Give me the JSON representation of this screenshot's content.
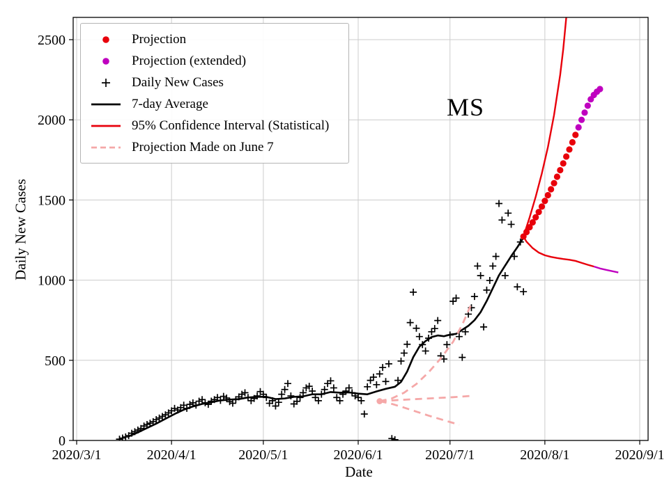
{
  "figure": {
    "annotation": "MS",
    "xlabel": "Date",
    "ylabel": "Daily New Cases"
  },
  "legend": {
    "position": "upper left",
    "items": [
      {
        "label": "Projection",
        "marker": "dot",
        "color": "#e8000b"
      },
      {
        "label": "Projection (extended)",
        "marker": "dot",
        "color": "#bf00bf"
      },
      {
        "label": "Daily New Cases",
        "marker": "plus",
        "color": "#000000"
      },
      {
        "label": "7-day Average",
        "marker": "line",
        "color": "#000000"
      },
      {
        "label": "95% Confidence Interval (Statistical)",
        "marker": "line",
        "color": "#e8000b"
      },
      {
        "label": "Projection Made on June 7",
        "marker": "dashed",
        "color": "#f5a8a8"
      }
    ]
  },
  "chart_data": {
    "type": "line",
    "title": "MS",
    "xlabel": "Date",
    "ylabel": "Daily New Cases",
    "ylim": [
      0,
      2640
    ],
    "yticks": [
      0,
      500,
      1000,
      1500,
      2000,
      2500
    ],
    "xtick_labels": [
      "2020/3/1",
      "2020/4/1",
      "2020/5/1",
      "2020/6/1",
      "2020/7/1",
      "2020/8/1",
      "2020/9/1"
    ],
    "grid": true,
    "series": [
      {
        "name": "Daily New Cases",
        "type": "scatter",
        "marker": "plus",
        "color": "#000000",
        "points": [
          [
            "3/15",
            8
          ],
          [
            "3/16",
            15
          ],
          [
            "3/17",
            22
          ],
          [
            "3/18",
            30
          ],
          [
            "3/19",
            45
          ],
          [
            "3/20",
            55
          ],
          [
            "3/21",
            65
          ],
          [
            "3/22",
            75
          ],
          [
            "3/23",
            90
          ],
          [
            "3/24",
            100
          ],
          [
            "3/25",
            108
          ],
          [
            "3/26",
            118
          ],
          [
            "3/27",
            130
          ],
          [
            "3/28",
            140
          ],
          [
            "3/29",
            150
          ],
          [
            "3/30",
            160
          ],
          [
            "3/31",
            172
          ],
          [
            "4/1",
            185
          ],
          [
            "4/2",
            200
          ],
          [
            "4/3",
            190
          ],
          [
            "4/4",
            205
          ],
          [
            "4/5",
            220
          ],
          [
            "4/6",
            200
          ],
          [
            "4/7",
            225
          ],
          [
            "4/8",
            235
          ],
          [
            "4/9",
            220
          ],
          [
            "4/10",
            245
          ],
          [
            "4/11",
            255
          ],
          [
            "4/12",
            235
          ],
          [
            "4/13",
            225
          ],
          [
            "4/14",
            245
          ],
          [
            "4/15",
            255
          ],
          [
            "4/16",
            268
          ],
          [
            "4/17",
            250
          ],
          [
            "4/18",
            275
          ],
          [
            "4/19",
            265
          ],
          [
            "4/20",
            242
          ],
          [
            "4/21",
            232
          ],
          [
            "4/22",
            255
          ],
          [
            "4/23",
            272
          ],
          [
            "4/24",
            288
          ],
          [
            "4/25",
            298
          ],
          [
            "4/26",
            268
          ],
          [
            "4/27",
            248
          ],
          [
            "4/28",
            262
          ],
          [
            "4/29",
            278
          ],
          [
            "4/30",
            305
          ],
          [
            "5/1",
            288
          ],
          [
            "5/2",
            268
          ],
          [
            "5/3",
            232
          ],
          [
            "5/4",
            248
          ],
          [
            "5/5",
            215
          ],
          [
            "5/6",
            238
          ],
          [
            "5/7",
            288
          ],
          [
            "5/8",
            318
          ],
          [
            "5/9",
            355
          ],
          [
            "5/10",
            278
          ],
          [
            "5/11",
            228
          ],
          [
            "5/12",
            244
          ],
          [
            "5/13",
            268
          ],
          [
            "5/14",
            298
          ],
          [
            "5/15",
            328
          ],
          [
            "5/16",
            338
          ],
          [
            "5/17",
            308
          ],
          [
            "5/18",
            268
          ],
          [
            "5/19",
            248
          ],
          [
            "5/20",
            288
          ],
          [
            "5/21",
            318
          ],
          [
            "5/22",
            355
          ],
          [
            "5/23",
            372
          ],
          [
            "5/24",
            328
          ],
          [
            "5/25",
            268
          ],
          [
            "5/26",
            248
          ],
          [
            "5/27",
            288
          ],
          [
            "5/28",
            308
          ],
          [
            "5/29",
            328
          ],
          [
            "5/30",
            298
          ],
          [
            "5/31",
            278
          ],
          [
            "6/1",
            268
          ],
          [
            "6/2",
            248
          ],
          [
            "6/3",
            165
          ],
          [
            "6/4",
            335
          ],
          [
            "6/5",
            375
          ],
          [
            "6/6",
            395
          ],
          [
            "6/7",
            348
          ],
          [
            "6/8",
            415
          ],
          [
            "6/9",
            455
          ],
          [
            "6/10",
            368
          ],
          [
            "6/11",
            478
          ],
          [
            "6/12",
            12
          ],
          [
            "6/13",
            5
          ],
          [
            "6/14",
            375
          ],
          [
            "6/15",
            495
          ],
          [
            "6/16",
            545
          ],
          [
            "6/17",
            600
          ],
          [
            "6/18",
            735
          ],
          [
            "6/19",
            925
          ],
          [
            "6/20",
            700
          ],
          [
            "6/21",
            648
          ],
          [
            "6/22",
            598
          ],
          [
            "6/23",
            558
          ],
          [
            "6/24",
            638
          ],
          [
            "6/25",
            678
          ],
          [
            "6/26",
            698
          ],
          [
            "6/27",
            748
          ],
          [
            "6/28",
            528
          ],
          [
            "6/29",
            508
          ],
          [
            "6/30",
            598
          ],
          [
            "7/1",
            658
          ],
          [
            "7/2",
            868
          ],
          [
            "7/3",
            888
          ],
          [
            "7/4",
            648
          ],
          [
            "7/5",
            518
          ],
          [
            "7/6",
            678
          ],
          [
            "7/7",
            788
          ],
          [
            "7/8",
            828
          ],
          [
            "7/9",
            898
          ],
          [
            "7/10",
            1088
          ],
          [
            "7/11",
            1028
          ],
          [
            "7/12",
            708
          ],
          [
            "7/13",
            938
          ],
          [
            "7/14",
            998
          ],
          [
            "7/15",
            1088
          ],
          [
            "7/16",
            1148
          ],
          [
            "7/17",
            1478
          ],
          [
            "7/18",
            1375
          ],
          [
            "7/19",
            1028
          ],
          [
            "7/20",
            1418
          ],
          [
            "7/21",
            1348
          ],
          [
            "7/22",
            1148
          ],
          [
            "7/23",
            958
          ],
          [
            "7/24",
            1238
          ],
          [
            "7/25",
            928
          ]
        ]
      },
      {
        "name": "7-day Average",
        "type": "line",
        "color": "#000000",
        "width": 2.6,
        "points": [
          [
            "3/18",
            25
          ],
          [
            "3/21",
            50
          ],
          [
            "3/24",
            78
          ],
          [
            "3/27",
            105
          ],
          [
            "3/30",
            135
          ],
          [
            "4/2",
            165
          ],
          [
            "4/5",
            192
          ],
          [
            "4/8",
            212
          ],
          [
            "4/11",
            228
          ],
          [
            "4/14",
            238
          ],
          [
            "4/17",
            250
          ],
          [
            "4/20",
            255
          ],
          [
            "4/23",
            258
          ],
          [
            "4/26",
            268
          ],
          [
            "4/29",
            272
          ],
          [
            "5/2",
            272
          ],
          [
            "5/5",
            258
          ],
          [
            "5/8",
            262
          ],
          [
            "5/11",
            272
          ],
          [
            "5/14",
            275
          ],
          [
            "5/17",
            288
          ],
          [
            "5/20",
            288
          ],
          [
            "5/23",
            302
          ],
          [
            "5/26",
            298
          ],
          [
            "5/29",
            300
          ],
          [
            "6/1",
            292
          ],
          [
            "6/4",
            288
          ],
          [
            "6/7",
            306
          ],
          [
            "6/10",
            322
          ],
          [
            "6/13",
            335
          ],
          [
            "6/15",
            365
          ],
          [
            "6/17",
            430
          ],
          [
            "6/19",
            520
          ],
          [
            "6/21",
            585
          ],
          [
            "6/23",
            620
          ],
          [
            "6/25",
            645
          ],
          [
            "6/27",
            655
          ],
          [
            "6/29",
            650
          ],
          [
            "7/1",
            660
          ],
          [
            "7/3",
            665
          ],
          [
            "7/5",
            690
          ],
          [
            "7/7",
            715
          ],
          [
            "7/9",
            750
          ],
          [
            "7/11",
            800
          ],
          [
            "7/13",
            870
          ],
          [
            "7/15",
            950
          ],
          [
            "7/17",
            1030
          ],
          [
            "7/19",
            1090
          ],
          [
            "7/21",
            1150
          ],
          [
            "7/23",
            1205
          ],
          [
            "7/25",
            1265
          ]
        ]
      },
      {
        "name": "Projection",
        "type": "scatter",
        "marker": "dot",
        "color": "#e8000b",
        "points": [
          [
            "7/25",
            1272
          ],
          [
            "7/26",
            1300
          ],
          [
            "7/27",
            1330
          ],
          [
            "7/28",
            1360
          ],
          [
            "7/29",
            1392
          ],
          [
            "7/30",
            1425
          ],
          [
            "7/31",
            1459
          ],
          [
            "8/1",
            1494
          ],
          [
            "8/2",
            1530
          ],
          [
            "8/3",
            1567
          ],
          [
            "8/4",
            1605
          ],
          [
            "8/5",
            1645
          ],
          [
            "8/6",
            1686
          ],
          [
            "8/7",
            1728
          ],
          [
            "8/8",
            1771
          ],
          [
            "8/9",
            1815
          ],
          [
            "8/10",
            1860
          ],
          [
            "8/11",
            1906
          ]
        ]
      },
      {
        "name": "Projection (extended)",
        "type": "scatter",
        "marker": "dot",
        "color": "#bf00bf",
        "points": [
          [
            "8/12",
            1953
          ],
          [
            "8/13",
            2000
          ],
          [
            "8/14",
            2045
          ],
          [
            "8/15",
            2088
          ],
          [
            "8/16",
            2128
          ],
          [
            "8/17",
            2155
          ],
          [
            "8/18",
            2175
          ],
          [
            "8/19",
            2192
          ]
        ]
      },
      {
        "name": "95% Confidence Interval upper",
        "type": "line",
        "color": "#e8000b",
        "width": 2.4,
        "points": [
          [
            "7/25",
            1272
          ],
          [
            "7/27",
            1390
          ],
          [
            "7/29",
            1520
          ],
          [
            "7/31",
            1665
          ],
          [
            "8/2",
            1830
          ],
          [
            "8/4",
            2030
          ],
          [
            "8/6",
            2280
          ],
          [
            "8/7",
            2440
          ],
          [
            "8/8",
            2640
          ],
          [
            "8/9",
            2900
          ]
        ]
      },
      {
        "name": "95% Confidence Interval lower",
        "type": "line",
        "color": "#e8000b",
        "width": 2.4,
        "points": [
          [
            "7/25",
            1272
          ],
          [
            "7/26",
            1240
          ],
          [
            "7/28",
            1200
          ],
          [
            "7/30",
            1172
          ],
          [
            "8/1",
            1155
          ],
          [
            "8/3",
            1145
          ],
          [
            "8/5",
            1138
          ],
          [
            "8/7",
            1132
          ],
          [
            "8/9",
            1127
          ],
          [
            "8/11",
            1120
          ],
          [
            "8/13",
            1108
          ],
          [
            "8/15",
            1096
          ],
          [
            "8/17",
            1085
          ]
        ]
      },
      {
        "name": "Confidence Interval lower extended",
        "type": "line",
        "color": "#bf00bf",
        "width": 2.4,
        "points": [
          [
            "8/17",
            1085
          ],
          [
            "8/19",
            1073
          ],
          [
            "8/21",
            1064
          ],
          [
            "8/23",
            1056
          ],
          [
            "8/25",
            1048
          ]
        ]
      },
      {
        "name": "Projection Made on June 7 upper",
        "type": "line",
        "dash": "10 7",
        "color": "#f5a8a8",
        "width": 2.8,
        "points": [
          [
            "6/8",
            245
          ],
          [
            "6/12",
            262
          ],
          [
            "6/16",
            298
          ],
          [
            "6/20",
            352
          ],
          [
            "6/24",
            425
          ],
          [
            "6/28",
            512
          ],
          [
            "7/2",
            615
          ],
          [
            "7/5",
            722
          ],
          [
            "7/8",
            852
          ]
        ]
      },
      {
        "name": "Projection Made on June 7 middle",
        "type": "line",
        "dash": "10 7",
        "color": "#f5a8a8",
        "width": 2.8,
        "start_marker": true,
        "points": [
          [
            "6/8",
            245
          ],
          [
            "6/14",
            252
          ],
          [
            "6/20",
            258
          ],
          [
            "6/26",
            264
          ],
          [
            "7/2",
            270
          ],
          [
            "7/8",
            278
          ]
        ]
      },
      {
        "name": "Projection Made on June 7 lower",
        "type": "line",
        "dash": "10 7",
        "color": "#f5a8a8",
        "width": 2.8,
        "points": [
          [
            "6/8",
            245
          ],
          [
            "6/12",
            228
          ],
          [
            "6/16",
            205
          ],
          [
            "6/20",
            180
          ],
          [
            "6/24",
            155
          ],
          [
            "6/28",
            132
          ],
          [
            "7/1",
            115
          ],
          [
            "7/4",
            98
          ]
        ]
      }
    ]
  }
}
